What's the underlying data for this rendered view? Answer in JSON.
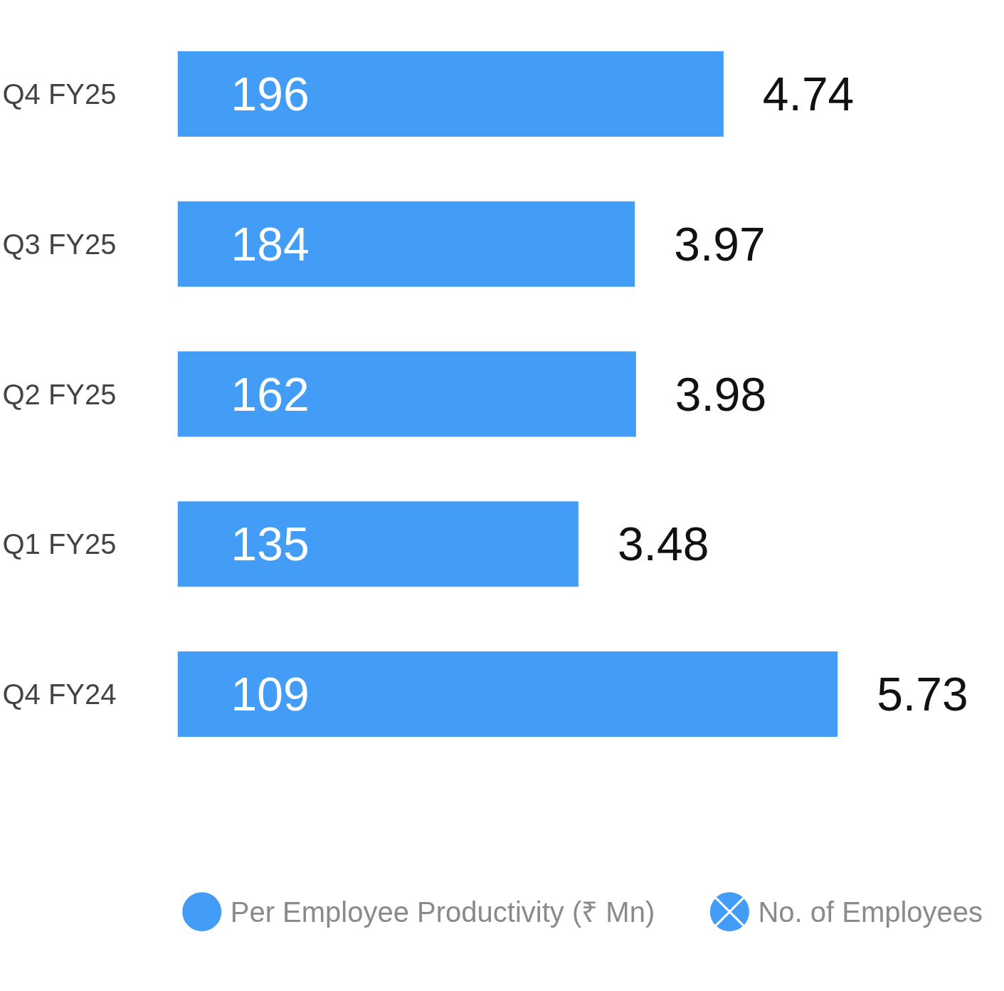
{
  "chart_data": {
    "type": "bar",
    "orientation": "horizontal",
    "categories": [
      "Q4 FY25",
      "Q3 FY25",
      "Q2 FY25",
      "Q1 FY25",
      "Q4 FY24"
    ],
    "series": [
      {
        "name": "No. of Employees",
        "color": "#439cf5",
        "values": [
          4.74,
          3.97,
          3.98,
          3.48,
          5.73
        ]
      }
    ],
    "data_labels": true,
    "tick_labels": "y",
    "legend": "bottom",
    "marker": "cross",
    "annotations": [
      "196",
      "184",
      "162",
      "135",
      "109",
      "Per Employee Productivity (₹ Mn)"
    ]
  }
}
